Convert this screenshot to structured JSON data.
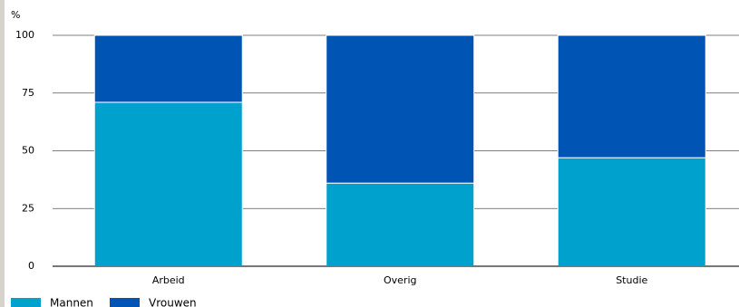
{
  "chart_data": {
    "type": "stacked_bar",
    "y_label": "%",
    "categories": [
      "Arbeid",
      "Overig",
      "Studie"
    ],
    "series": [
      {
        "name": "Mannen",
        "color": "#00a1cd",
        "values": [
          71,
          36,
          47
        ]
      },
      {
        "name": "Vrouwen",
        "color": "#0054b4",
        "values": [
          29,
          64,
          53
        ]
      }
    ],
    "ylim": [
      0,
      100
    ],
    "yticks": [
      0,
      25,
      50,
      75,
      100
    ],
    "grid": true,
    "legend": "bottom-left"
  }
}
